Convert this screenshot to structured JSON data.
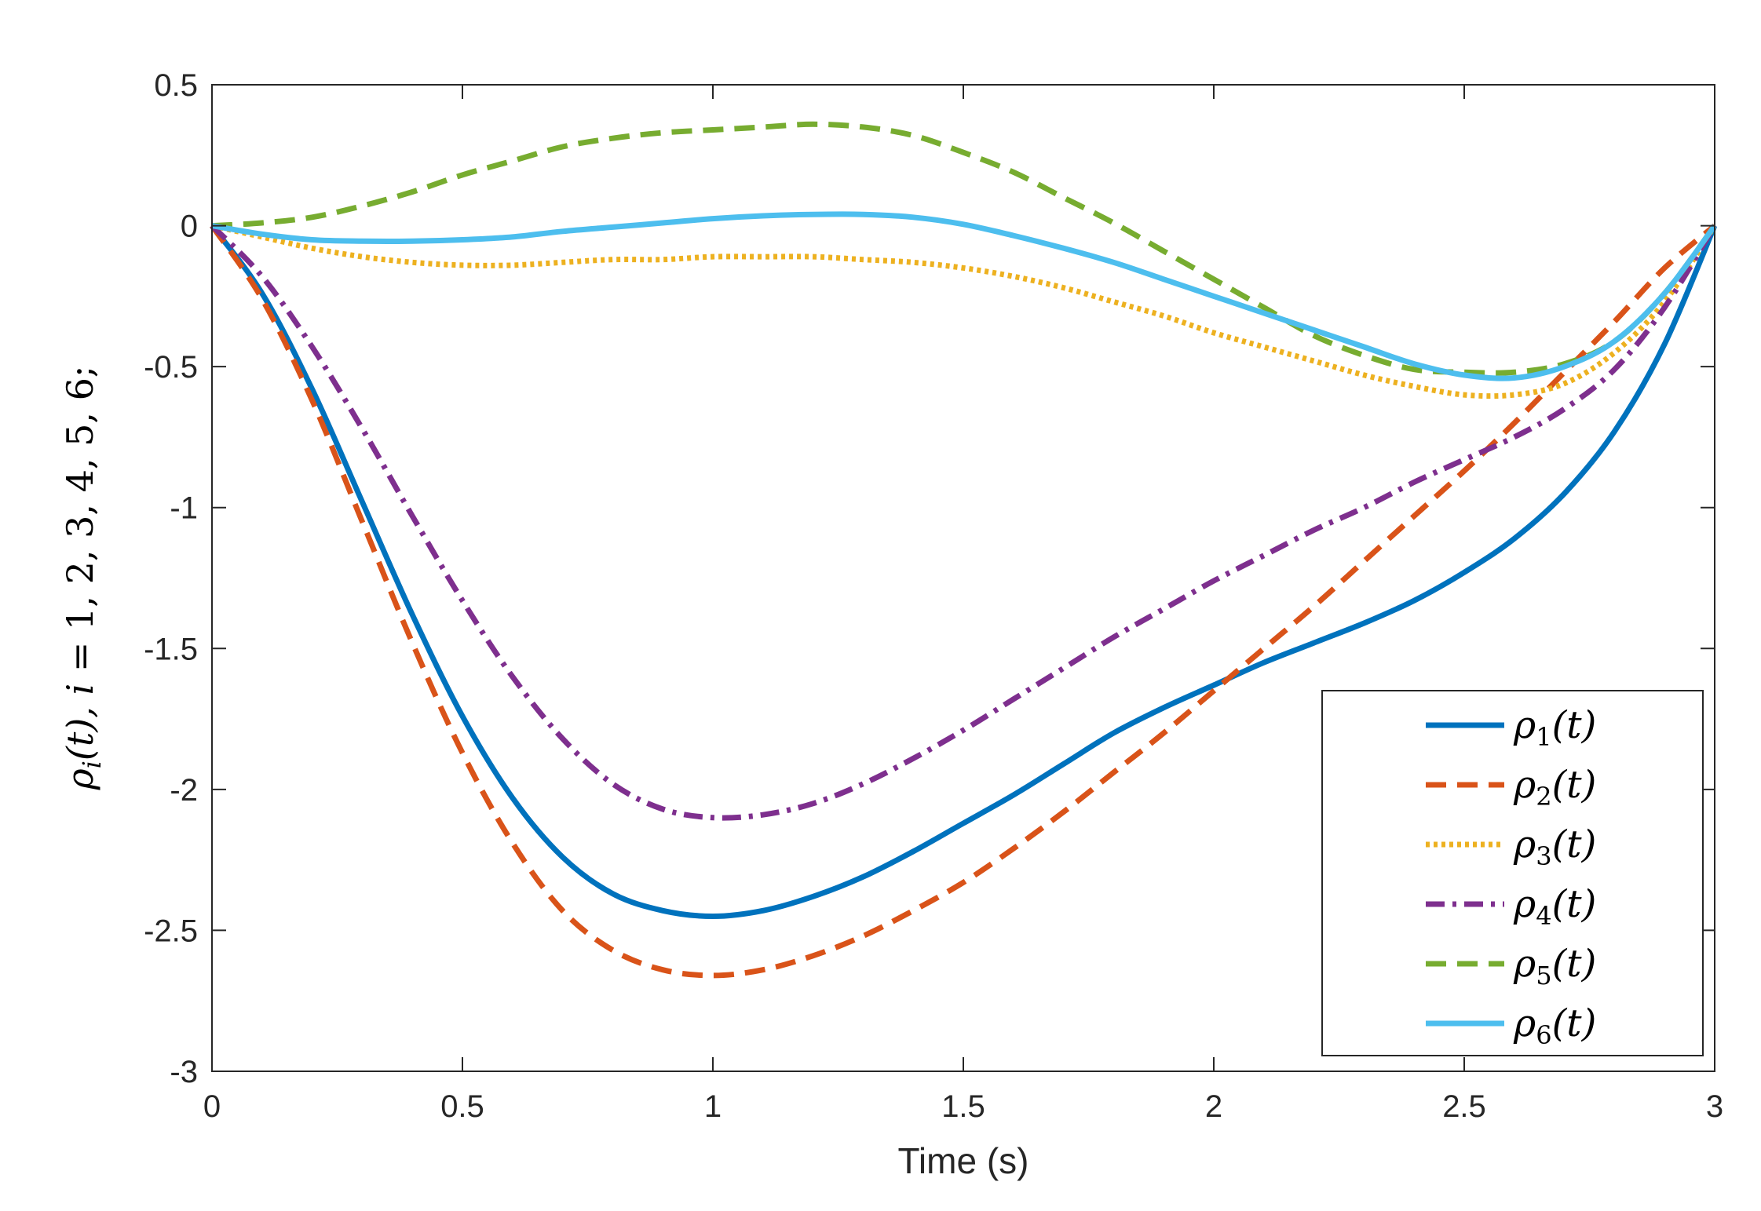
{
  "chart_data": {
    "type": "line",
    "title": "",
    "xlabel": "Time (s)",
    "ylabel": "ρi(t), i = 1, 2, 3, 4, 5, 6;",
    "ylabel_parts": {
      "symbol": "ρ",
      "subscript": "i",
      "arg": "(t), ",
      "var": "i",
      "rest": " = 1, 2, 3, 4, 5, 6;"
    },
    "xlim": [
      0,
      3
    ],
    "ylim": [
      -3,
      0.5
    ],
    "xticks": [
      0,
      0.5,
      1,
      1.5,
      2,
      2.5,
      3
    ],
    "xtick_labels": [
      "0",
      "0.5",
      "1",
      "1.5",
      "2",
      "2.5",
      "3"
    ],
    "yticks": [
      0.5,
      0,
      -0.5,
      -1,
      -1.5,
      -2,
      -2.5,
      -3
    ],
    "ytick_labels": [
      "0.5",
      "0",
      "-0.5",
      "-1",
      "-1.5",
      "-2",
      "-2.5",
      "-3"
    ],
    "grid": false,
    "legend_position": "bottom-right",
    "x": [
      0,
      0.1,
      0.2,
      0.3,
      0.4,
      0.5,
      0.6,
      0.7,
      0.8,
      0.9,
      1.0,
      1.1,
      1.2,
      1.3,
      1.4,
      1.5,
      1.6,
      1.7,
      1.8,
      1.9,
      2.0,
      2.1,
      2.2,
      2.3,
      2.4,
      2.5,
      2.6,
      2.7,
      2.8,
      2.9,
      3.0
    ],
    "series": [
      {
        "name": "ρ1(t)",
        "symbol": "ρ",
        "index": "1",
        "arg": "(t)",
        "color": "#0072BD",
        "dash": "solid",
        "values": [
          0,
          -0.24,
          -0.58,
          -0.98,
          -1.38,
          -1.74,
          -2.03,
          -2.24,
          -2.37,
          -2.43,
          -2.45,
          -2.43,
          -2.38,
          -2.31,
          -2.22,
          -2.12,
          -2.02,
          -1.91,
          -1.8,
          -1.71,
          -1.63,
          -1.55,
          -1.48,
          -1.41,
          -1.33,
          -1.23,
          -1.11,
          -0.95,
          -0.73,
          -0.42,
          0
        ]
      },
      {
        "name": "ρ2(t)",
        "symbol": "ρ",
        "index": "2",
        "arg": "(t)",
        "color": "#D95319",
        "dash": "dashed",
        "values": [
          0,
          -0.26,
          -0.62,
          -1.05,
          -1.48,
          -1.87,
          -2.19,
          -2.43,
          -2.57,
          -2.64,
          -2.66,
          -2.64,
          -2.59,
          -2.52,
          -2.43,
          -2.33,
          -2.21,
          -2.08,
          -1.94,
          -1.8,
          -1.65,
          -1.5,
          -1.35,
          -1.19,
          -1.03,
          -0.87,
          -0.7,
          -0.52,
          -0.34,
          -0.15,
          0
        ]
      },
      {
        "name": "ρ3(t)",
        "symbol": "ρ",
        "index": "3",
        "arg": "(t)",
        "color": "#EDB120",
        "dash": "dotted",
        "values": [
          0,
          -0.04,
          -0.08,
          -0.11,
          -0.13,
          -0.14,
          -0.14,
          -0.13,
          -0.12,
          -0.12,
          -0.11,
          -0.11,
          -0.11,
          -0.12,
          -0.13,
          -0.15,
          -0.18,
          -0.22,
          -0.27,
          -0.32,
          -0.38,
          -0.43,
          -0.48,
          -0.53,
          -0.57,
          -0.6,
          -0.6,
          -0.56,
          -0.45,
          -0.27,
          0
        ]
      },
      {
        "name": "ρ4(t)",
        "symbol": "ρ",
        "index": "4",
        "arg": "(t)",
        "color": "#7E2F8E",
        "dash": "dashdot",
        "values": [
          0,
          -0.18,
          -0.43,
          -0.72,
          -1.03,
          -1.33,
          -1.6,
          -1.82,
          -1.98,
          -2.07,
          -2.1,
          -2.09,
          -2.05,
          -1.98,
          -1.89,
          -1.79,
          -1.68,
          -1.57,
          -1.46,
          -1.36,
          -1.26,
          -1.17,
          -1.08,
          -1.0,
          -0.91,
          -0.83,
          -0.75,
          -0.65,
          -0.51,
          -0.29,
          0
        ]
      },
      {
        "name": "ρ5(t)",
        "symbol": "ρ",
        "index": "5",
        "arg": "(t)",
        "color": "#77AC30",
        "dash": "dashed",
        "values": [
          0,
          0.01,
          0.03,
          0.07,
          0.12,
          0.18,
          0.23,
          0.28,
          0.31,
          0.33,
          0.34,
          0.35,
          0.36,
          0.35,
          0.32,
          0.26,
          0.19,
          0.1,
          0.01,
          -0.09,
          -0.19,
          -0.29,
          -0.39,
          -0.46,
          -0.51,
          -0.52,
          -0.52,
          -0.49,
          -0.41,
          -0.24,
          0
        ]
      },
      {
        "name": "ρ6(t)",
        "symbol": "ρ",
        "index": "6",
        "arg": "(t)",
        "color": "#4DBEEE",
        "dash": "solid",
        "values": [
          0,
          -0.03,
          -0.05,
          -0.055,
          -0.055,
          -0.05,
          -0.04,
          -0.02,
          -0.005,
          0.01,
          0.025,
          0.035,
          0.04,
          0.04,
          0.03,
          0.005,
          -0.035,
          -0.08,
          -0.13,
          -0.19,
          -0.25,
          -0.31,
          -0.37,
          -0.43,
          -0.49,
          -0.53,
          -0.54,
          -0.5,
          -0.41,
          -0.24,
          0
        ]
      }
    ]
  }
}
